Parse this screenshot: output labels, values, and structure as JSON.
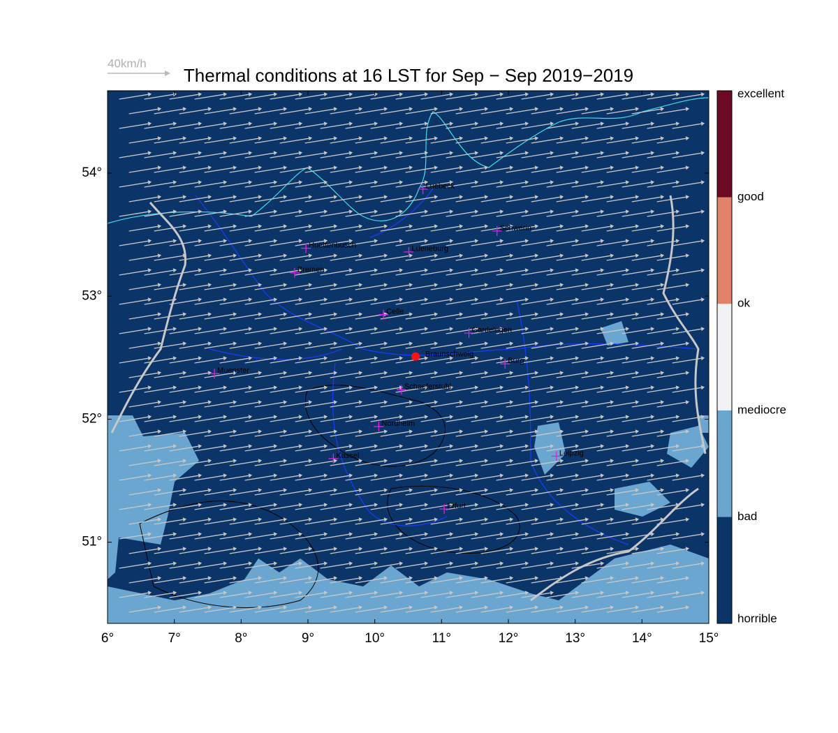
{
  "title": "Thermal conditions at 16 LST for Sep − Sep  2019−2019",
  "wind_scale": "40km/h",
  "lon_range": [
    6,
    15
  ],
  "lat_range": [
    50.34,
    54.67
  ],
  "xticks": [
    {
      "value": 6,
      "label": "6°"
    },
    {
      "value": 7,
      "label": "7°"
    },
    {
      "value": 8,
      "label": "8°"
    },
    {
      "value": 9,
      "label": "9°"
    },
    {
      "value": 10,
      "label": "10°"
    },
    {
      "value": 11,
      "label": "11°"
    },
    {
      "value": 12,
      "label": "12°"
    },
    {
      "value": 13,
      "label": "13°"
    },
    {
      "value": 14,
      "label": "14°"
    },
    {
      "value": 15,
      "label": "15°"
    }
  ],
  "yticks": [
    {
      "value": 51,
      "label": "51°"
    },
    {
      "value": 52,
      "label": "52°"
    },
    {
      "value": 53,
      "label": "53°"
    },
    {
      "value": 54,
      "label": "54°"
    }
  ],
  "cities": [
    {
      "name": "Luebeck",
      "lon": 10.72,
      "lat": 53.87
    },
    {
      "name": "Schwerin",
      "lon": 11.83,
      "lat": 53.53
    },
    {
      "name": "Huettenbusch",
      "lon": 8.97,
      "lat": 53.39
    },
    {
      "name": "Lueneburg",
      "lon": 10.51,
      "lat": 53.36
    },
    {
      "name": "Bremen",
      "lon": 8.8,
      "lat": 53.19
    },
    {
      "name": "Celle",
      "lon": 10.13,
      "lat": 52.85
    },
    {
      "name": "Gardelegen",
      "lon": 11.41,
      "lat": 52.7
    },
    {
      "name": "Burg",
      "lon": 11.95,
      "lat": 52.45
    },
    {
      "name": "Muenster",
      "lon": 7.6,
      "lat": 52.37
    },
    {
      "name": "Schaeferstuhl",
      "lon": 10.4,
      "lat": 52.24
    },
    {
      "name": "Nordheim",
      "lon": 10.06,
      "lat": 51.94
    },
    {
      "name": "Kassel",
      "lon": 9.38,
      "lat": 51.68
    },
    {
      "name": "Leipzig",
      "lon": 12.72,
      "lat": 51.7
    },
    {
      "name": "Erfurt",
      "lon": 11.04,
      "lat": 51.27
    }
  ],
  "site": {
    "name": "Braunschweig",
    "lon": 10.61,
    "lat": 52.51
  },
  "colorbar": {
    "labels": [
      "horrible",
      "bad",
      "mediocre",
      "ok",
      "good",
      "excellent"
    ],
    "colors": [
      "#0b3468",
      "#6aa6cf",
      "#f2f2f4",
      "#e2826a",
      "#6b0a22"
    ]
  }
}
